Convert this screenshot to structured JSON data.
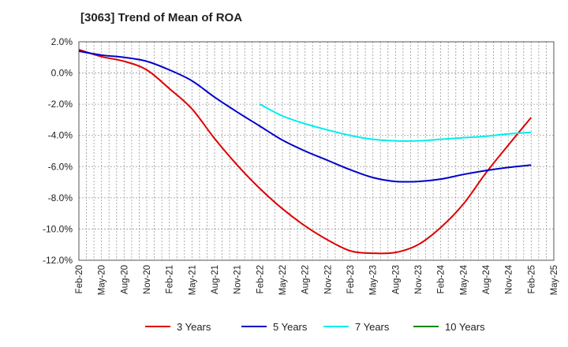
{
  "chart_data": {
    "type": "line",
    "title": "[3063]  Trend of Mean of ROA",
    "xlabel": "",
    "ylabel": "",
    "ylim": [
      -12,
      2
    ],
    "y_ticks": [
      "2.0%",
      "0.0%",
      "-2.0%",
      "-4.0%",
      "-6.0%",
      "-8.0%",
      "-10.0%",
      "-12.0%"
    ],
    "y_tick_values": [
      2,
      0,
      -2,
      -4,
      -6,
      -8,
      -10,
      -12
    ],
    "categories": [
      "Feb-20",
      "May-20",
      "Aug-20",
      "Nov-20",
      "Feb-21",
      "May-21",
      "Aug-21",
      "Nov-21",
      "Feb-22",
      "May-22",
      "Aug-22",
      "Nov-22",
      "Feb-23",
      "May-23",
      "Aug-23",
      "Nov-23",
      "Feb-24",
      "May-24",
      "Aug-24",
      "Nov-24",
      "Feb-25",
      "May-25"
    ],
    "grid": true,
    "legend_position": "bottom",
    "series": [
      {
        "name": "3 Years",
        "color": "#dd0000",
        "values": [
          1.5,
          1.05,
          0.75,
          0.2,
          -1.0,
          -2.3,
          -4.2,
          -5.9,
          -7.4,
          -8.7,
          -9.8,
          -10.7,
          -11.4,
          -11.55,
          -11.5,
          -11.0,
          -9.9,
          -8.4,
          -6.4,
          -4.6,
          -2.85,
          null
        ]
      },
      {
        "name": "5 Years",
        "color": "#0000cc",
        "values": [
          1.4,
          1.15,
          1.0,
          0.75,
          0.2,
          -0.5,
          -1.55,
          -2.5,
          -3.4,
          -4.3,
          -5.0,
          -5.6,
          -6.2,
          -6.7,
          -6.95,
          -6.95,
          -6.8,
          -6.5,
          -6.25,
          -6.05,
          -5.9,
          null
        ]
      },
      {
        "name": "7 Years",
        "color": "#00eeee",
        "values": [
          null,
          null,
          null,
          null,
          null,
          null,
          null,
          null,
          -2.0,
          -2.75,
          -3.25,
          -3.65,
          -4.0,
          -4.25,
          -4.35,
          -4.35,
          -4.25,
          -4.15,
          -4.05,
          -3.9,
          -3.8,
          null
        ]
      },
      {
        "name": "10 Years",
        "color": "#008800",
        "values": [
          null,
          null,
          null,
          null,
          null,
          null,
          null,
          null,
          null,
          null,
          null,
          null,
          null,
          null,
          null,
          null,
          null,
          null,
          null,
          null,
          null,
          null
        ]
      }
    ]
  }
}
